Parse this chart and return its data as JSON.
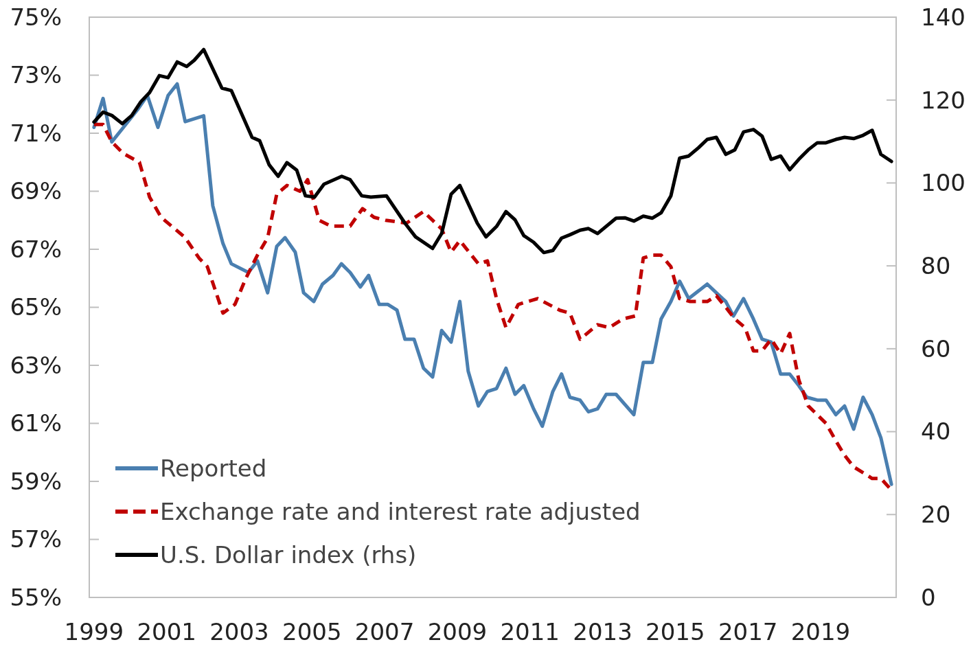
{
  "chart_data": {
    "type": "line",
    "xlim": [
      1998.87,
      2021.08
    ],
    "xticks": [
      1999,
      2001,
      2003,
      2005,
      2007,
      2009,
      2011,
      2013,
      2015,
      2017,
      2019
    ],
    "ylim": [
      55,
      75
    ],
    "yticks": [
      {
        "value": 55,
        "label": "55%"
      },
      {
        "value": 57,
        "label": "57%"
      },
      {
        "value": 59,
        "label": "59%"
      },
      {
        "value": 61,
        "label": "61%"
      },
      {
        "value": 63,
        "label": "63%"
      },
      {
        "value": 65,
        "label": "65%"
      },
      {
        "value": 67,
        "label": "67%"
      },
      {
        "value": 69,
        "label": "69%"
      },
      {
        "value": 71,
        "label": "71%"
      },
      {
        "value": 73,
        "label": "73%"
      },
      {
        "value": 75,
        "label": "75%"
      }
    ],
    "y2lim": [
      0,
      140
    ],
    "y2ticks": [
      0,
      20,
      40,
      60,
      80,
      100,
      120,
      140
    ],
    "grid": false,
    "legend": "bottom left",
    "series": [
      {
        "name": "Reported",
        "color": "#4a7fb0",
        "line_style": "solid",
        "x": [
          1999.0,
          1999.25,
          1999.49,
          1999.81,
          2000.19,
          2000.47,
          2000.76,
          2001.04,
          2001.29,
          2001.51,
          2002.02,
          2002.27,
          2002.55,
          2002.78,
          2003.25,
          2003.5,
          2003.78,
          2004.03,
          2004.26,
          2004.54,
          2004.77,
          2005.05,
          2005.29,
          2005.58,
          2005.81,
          2006.05,
          2006.33,
          2006.56,
          2006.85,
          2007.09,
          2007.34,
          2007.56,
          2007.81,
          2008.07,
          2008.32,
          2008.57,
          2008.83,
          2009.07,
          2009.3,
          2009.58,
          2009.83,
          2010.08,
          2010.34,
          2010.59,
          2010.83,
          2011.1,
          2011.34,
          2011.63,
          2011.87,
          2012.1,
          2012.38,
          2012.61,
          2012.86,
          2013.1,
          2013.37,
          2013.86,
          2014.12,
          2014.37,
          2014.61,
          2014.88,
          2015.12,
          2015.37,
          2015.88,
          2016.13,
          2016.39,
          2016.6,
          2016.88,
          2017.15,
          2017.39,
          2017.64,
          2017.9,
          2018.15,
          2018.4,
          2018.62,
          2018.91,
          2019.15,
          2019.42,
          2019.66,
          2019.91,
          2020.17,
          2020.42,
          2020.66,
          2020.95
        ],
        "values": [
          71.2,
          72.2,
          70.7,
          71.2,
          71.8,
          72.3,
          71.2,
          72.3,
          72.7,
          71.4,
          71.6,
          68.5,
          67.2,
          66.5,
          66.2,
          66.6,
          65.5,
          67.1,
          67.4,
          66.9,
          65.5,
          65.2,
          65.8,
          66.1,
          66.5,
          66.2,
          65.7,
          66.1,
          65.1,
          65.1,
          64.9,
          63.9,
          63.9,
          62.9,
          62.6,
          64.2,
          63.8,
          65.2,
          62.8,
          61.6,
          62.1,
          62.2,
          62.9,
          62.0,
          62.3,
          61.5,
          60.9,
          62.1,
          62.7,
          61.9,
          61.8,
          61.4,
          61.5,
          62.0,
          62.0,
          61.3,
          63.1,
          63.1,
          64.6,
          65.2,
          65.9,
          65.3,
          65.8,
          65.5,
          65.2,
          64.7,
          65.3,
          64.6,
          63.9,
          63.8,
          62.7,
          62.7,
          62.3,
          61.9,
          61.8,
          61.8,
          61.3,
          61.6,
          60.8,
          61.9,
          61.3,
          60.5,
          58.9
        ]
      },
      {
        "name": "Exchange rate and interest rate adjusted",
        "color": "#c00000",
        "line_style": "dashed",
        "x": [
          1999.0,
          1999.25,
          1999.49,
          1999.81,
          2000.25,
          2000.53,
          2000.85,
          2001.23,
          2001.51,
          2001.89,
          2002.12,
          2002.55,
          2002.88,
          2003.18,
          2003.5,
          2003.78,
          2004.03,
          2004.31,
          2004.67,
          2004.88,
          2005.2,
          2005.52,
          2006.05,
          2006.39,
          2006.71,
          2007.03,
          2007.6,
          2008.07,
          2008.57,
          2008.83,
          2009.07,
          2009.58,
          2009.83,
          2010.08,
          2010.34,
          2010.68,
          2011.21,
          2011.82,
          2012.1,
          2012.38,
          2012.86,
          2013.18,
          2013.56,
          2013.9,
          2014.12,
          2014.37,
          2014.61,
          2014.88,
          2015.12,
          2015.41,
          2015.88,
          2016.13,
          2016.39,
          2016.64,
          2016.92,
          2017.15,
          2017.39,
          2017.64,
          2017.9,
          2018.15,
          2018.4,
          2018.66,
          2019.15,
          2019.42,
          2019.66,
          2019.91,
          2020.17,
          2020.42,
          2020.66,
          2020.95
        ],
        "values": [
          71.3,
          71.3,
          70.7,
          70.3,
          70.0,
          68.8,
          68.1,
          67.7,
          67.4,
          66.7,
          66.4,
          64.8,
          65.1,
          66.0,
          66.8,
          67.4,
          68.9,
          69.2,
          69.0,
          69.4,
          68.0,
          67.8,
          67.8,
          68.4,
          68.1,
          68.0,
          67.9,
          68.3,
          67.7,
          66.9,
          67.3,
          66.5,
          66.6,
          65.3,
          64.3,
          65.1,
          65.3,
          64.9,
          64.8,
          63.9,
          64.4,
          64.3,
          64.6,
          64.7,
          66.7,
          66.8,
          66.8,
          66.4,
          65.3,
          65.2,
          65.2,
          65.4,
          65.0,
          64.6,
          64.3,
          63.5,
          63.5,
          63.9,
          63.4,
          64.1,
          62.5,
          61.6,
          61.0,
          60.4,
          59.9,
          59.5,
          59.3,
          59.1,
          59.1,
          58.7
        ]
      },
      {
        "name": "U.S. Dollar index (rhs)",
        "color": "#000000",
        "line_style": "solid",
        "axis": "y2",
        "x": [
          1999.0,
          1999.25,
          1999.49,
          1999.78,
          2000.04,
          2000.29,
          2000.53,
          2000.8,
          2001.04,
          2001.29,
          2001.55,
          2001.76,
          2002.02,
          2002.52,
          2002.78,
          2003.35,
          2003.56,
          2003.82,
          2004.07,
          2004.31,
          2004.58,
          2004.82,
          2005.07,
          2005.33,
          2005.82,
          2006.05,
          2006.37,
          2006.62,
          2007.05,
          2007.56,
          2007.85,
          2008.32,
          2008.57,
          2008.83,
          2009.07,
          2009.55,
          2009.79,
          2010.08,
          2010.34,
          2010.59,
          2010.83,
          2011.1,
          2011.38,
          2011.63,
          2011.87,
          2012.1,
          2012.38,
          2012.61,
          2012.86,
          2013.37,
          2013.61,
          2013.86,
          2014.12,
          2014.37,
          2014.61,
          2014.88,
          2015.12,
          2015.37,
          2015.64,
          2015.88,
          2016.13,
          2016.39,
          2016.64,
          2016.88,
          2017.15,
          2017.39,
          2017.64,
          2017.9,
          2018.15,
          2018.4,
          2018.66,
          2018.91,
          2019.15,
          2019.42,
          2019.66,
          2019.91,
          2020.17,
          2020.42,
          2020.66,
          2020.95
        ],
        "values": [
          114.7,
          117.1,
          116.3,
          114.3,
          116.3,
          119.6,
          121.8,
          125.9,
          125.4,
          129.2,
          128.1,
          129.6,
          132.2,
          122.9,
          122.3,
          111.0,
          110.2,
          104.4,
          101.6,
          104.9,
          103.1,
          96.9,
          96.6,
          99.7,
          101.6,
          100.8,
          96.9,
          96.6,
          96.9,
          90.3,
          87.0,
          84.2,
          87.8,
          97.3,
          99.4,
          90.3,
          87.0,
          89.5,
          93.1,
          91.1,
          87.3,
          85.7,
          83.2,
          83.7,
          86.7,
          87.5,
          88.6,
          89.0,
          87.8,
          91.5,
          91.6,
          90.8,
          92.0,
          91.5,
          92.8,
          96.9,
          106.0,
          106.5,
          108.5,
          110.5,
          111.0,
          106.9,
          108.0,
          112.3,
          112.9,
          111.3,
          105.7,
          106.5,
          103.2,
          105.7,
          108.0,
          109.7,
          109.7,
          110.5,
          111.0,
          110.7,
          111.5,
          112.7,
          106.9,
          105.2
        ]
      }
    ]
  }
}
